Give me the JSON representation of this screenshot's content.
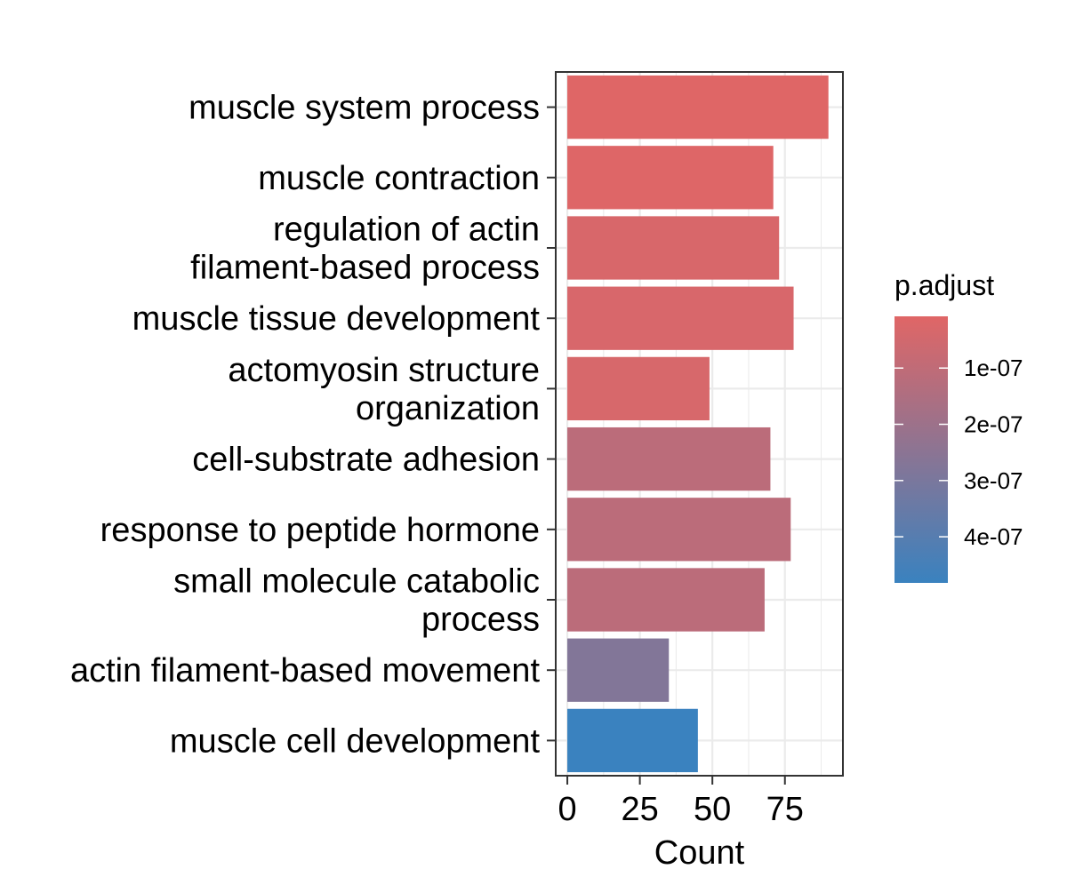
{
  "chart_data": {
    "type": "bar",
    "orientation": "horizontal",
    "categories": [
      [
        "muscle system process"
      ],
      [
        "muscle contraction"
      ],
      [
        "regulation of actin",
        "filament-based process"
      ],
      [
        "muscle tissue development"
      ],
      [
        "actomyosin structure",
        "organization"
      ],
      [
        "cell-substrate adhesion"
      ],
      [
        "response to peptide hormone"
      ],
      [
        "small molecule catabolic",
        "process"
      ],
      [
        "actin filament-based movement"
      ],
      [
        "muscle cell development"
      ]
    ],
    "values": [
      90,
      71,
      73,
      78,
      49,
      70,
      77,
      68,
      35,
      45
    ],
    "p_adjust": [
      1e-08,
      1.5e-08,
      3e-08,
      3.2e-08,
      3.5e-08,
      1.15e-07,
      1.15e-07,
      1.15e-07,
      2.75e-07,
      4.82e-07
    ],
    "xlabel": "Count",
    "ylabel": "",
    "xlim": [
      -4,
      95
    ],
    "x_ticks": [
      0,
      25,
      50,
      75
    ],
    "x_tick_labels": [
      "0",
      "25",
      "50",
      "75"
    ],
    "grid": true,
    "legend": {
      "title": "p.adjust",
      "placement": "right",
      "type": "colorbar",
      "color_low": "#E06666",
      "color_high": "#3A82BF",
      "range": [
        8e-09,
        4.82e-07
      ],
      "ticks": [
        1e-07,
        2e-07,
        3e-07,
        4e-07
      ],
      "tick_labels": [
        "1e-07",
        "2e-07",
        "3e-07",
        "4e-07"
      ]
    }
  }
}
